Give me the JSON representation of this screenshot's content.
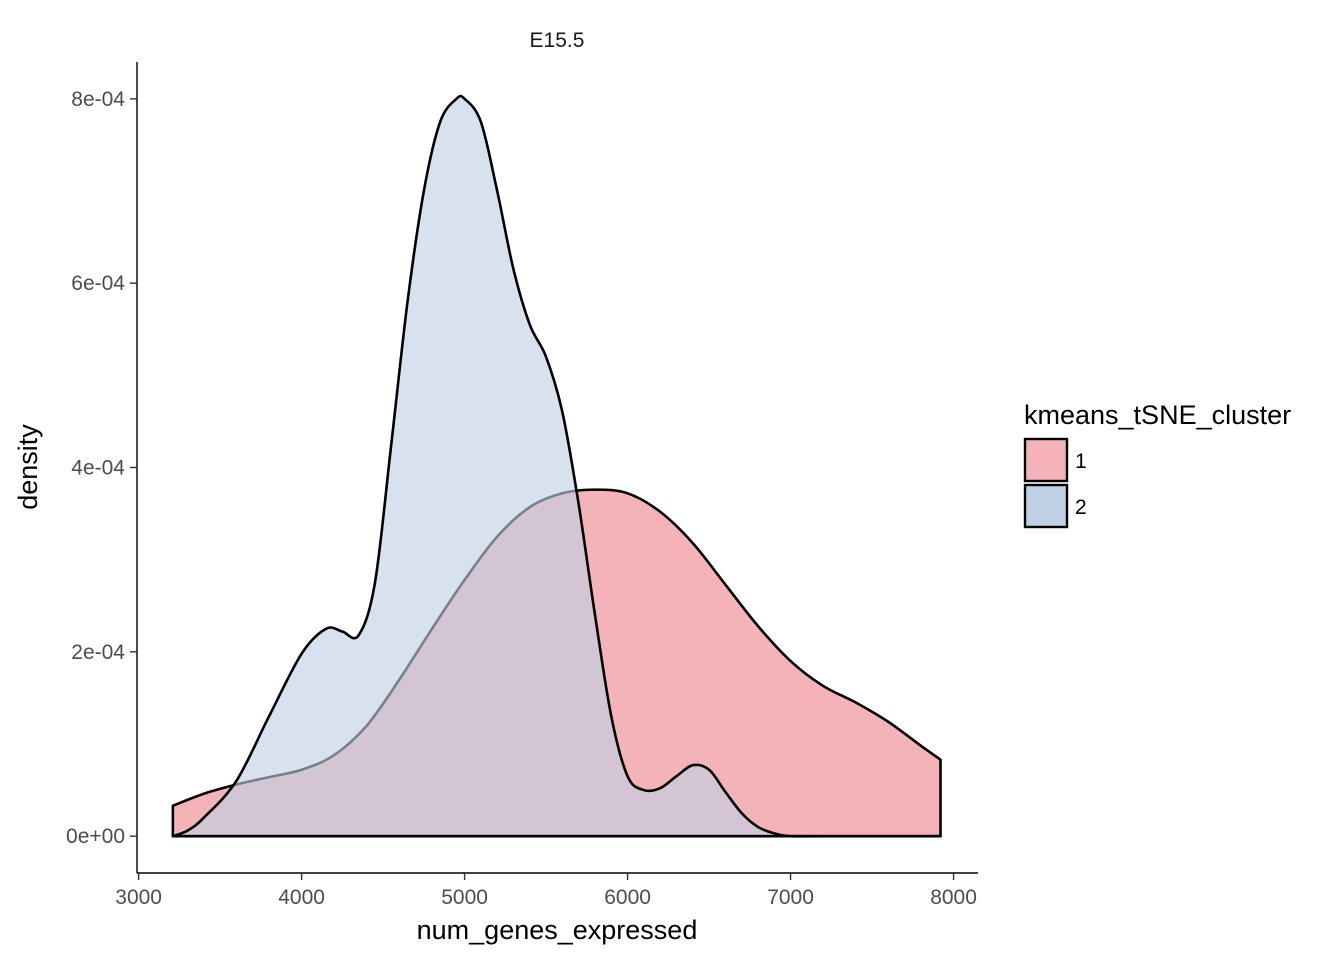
{
  "chart_data": {
    "type": "area",
    "subtype": "density",
    "title": "E15.5",
    "xlabel": "num_genes_expressed",
    "ylabel": "density",
    "xlim": [
      2990,
      8150
    ],
    "ylim": [
      -4e-05,
      0.00084
    ],
    "x_ticks": [
      3000,
      4000,
      5000,
      6000,
      7000,
      8000
    ],
    "x_tick_labels": [
      "3000",
      "4000",
      "5000",
      "6000",
      "7000",
      "8000"
    ],
    "y_ticks": [
      0,
      0.0002,
      0.0004,
      0.0006,
      0.0008
    ],
    "y_tick_labels": [
      "0e+00",
      "2e-04",
      "4e-04",
      "6e-04",
      "8e-04"
    ],
    "grid": false,
    "legend": {
      "title": "kmeans_tSNE_cluster",
      "position": "right",
      "entries": [
        "1",
        "2"
      ]
    },
    "series": [
      {
        "name": "1",
        "color": "#F4B3B8",
        "points": [
          [
            3210,
            3.3e-05
          ],
          [
            3400,
            4.6e-05
          ],
          [
            3600,
            5.6e-05
          ],
          [
            3800,
            6.4e-05
          ],
          [
            4000,
            7.2e-05
          ],
          [
            4200,
            8.8e-05
          ],
          [
            4400,
            0.00012
          ],
          [
            4600,
            0.00017
          ],
          [
            4800,
            0.000225
          ],
          [
            5000,
            0.000278
          ],
          [
            5200,
            0.000325
          ],
          [
            5400,
            0.000357
          ],
          [
            5600,
            0.000372
          ],
          [
            5800,
            0.000376
          ],
          [
            6000,
            0.000372
          ],
          [
            6200,
            0.000352
          ],
          [
            6400,
            0.000318
          ],
          [
            6600,
            0.000273
          ],
          [
            6800,
            0.000228
          ],
          [
            7000,
            0.00019
          ],
          [
            7200,
            0.000163
          ],
          [
            7400,
            0.000145
          ],
          [
            7600,
            0.000124
          ],
          [
            7800,
            9.8e-05
          ],
          [
            7920,
            8.3e-05
          ]
        ]
      },
      {
        "name": "2",
        "color": "#BFD1E4",
        "points": [
          [
            3210,
            0.0
          ],
          [
            3300,
            6e-06
          ],
          [
            3400,
            2e-05
          ],
          [
            3600,
            6e-05
          ],
          [
            3800,
            0.00013
          ],
          [
            4000,
            0.000198
          ],
          [
            4150,
            0.000225
          ],
          [
            4250,
            0.000222
          ],
          [
            4350,
            0.000218
          ],
          [
            4450,
            0.000275
          ],
          [
            4550,
            0.000425
          ],
          [
            4650,
            0.00058
          ],
          [
            4750,
            0.0007
          ],
          [
            4850,
            0.000775
          ],
          [
            4950,
            0.0008
          ],
          [
            5000,
            0.0008
          ],
          [
            5100,
            0.000775
          ],
          [
            5200,
            0.0007
          ],
          [
            5300,
            0.000615
          ],
          [
            5400,
            0.000555
          ],
          [
            5500,
            0.00052
          ],
          [
            5600,
            0.00046
          ],
          [
            5700,
            0.00036
          ],
          [
            5800,
            0.00024
          ],
          [
            5900,
            0.00013
          ],
          [
            6000,
            6.5e-05
          ],
          [
            6100,
            5e-05
          ],
          [
            6200,
            5.2e-05
          ],
          [
            6300,
            6.5e-05
          ],
          [
            6400,
            7.7e-05
          ],
          [
            6500,
            7.2e-05
          ],
          [
            6600,
            4.8e-05
          ],
          [
            6700,
            2.5e-05
          ],
          [
            6800,
            1e-05
          ],
          [
            6900,
            3e-06
          ],
          [
            7000,
            0.0
          ],
          [
            7200,
            0.0
          ],
          [
            7920,
            0.0
          ]
        ]
      }
    ],
    "overlap_color": "#B79DB1",
    "outline_color": "#000000"
  }
}
